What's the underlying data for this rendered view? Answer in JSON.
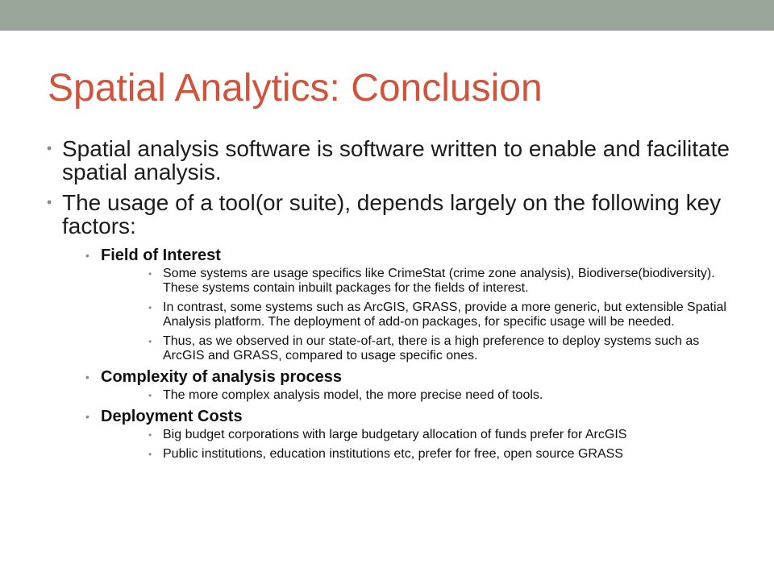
{
  "slide": {
    "title": "Spatial Analytics: Conclusion",
    "bullet_glyph": "•",
    "bullets": [
      {
        "text": "Spatial analysis software is software written to enable and facilitate spatial analysis."
      },
      {
        "text": "The usage of a tool(or suite), depends largely on the following key factors:",
        "subitems": [
          {
            "heading": "Field of Interest",
            "points": [
              "Some systems are usage specifics like CrimeStat (crime zone analysis), Biodiverse(biodiversity).  These systems contain inbuilt  packages for the fields of interest.",
              "In contrast, some systems such as ArcGIS, GRASS, provide a more generic, but extensible  Spatial Analysis platform. The deployment of add-on packages, for specific usage will be needed.",
              "Thus, as we observed in our state-of-art, there is a high  preference to deploy systems such as ArcGIS and GRASS, compared to usage specific ones."
            ]
          },
          {
            "heading": "Complexity of analysis process",
            "points": [
              "The more complex analysis model, the more precise need of tools."
            ]
          },
          {
            "heading": "Deployment Costs",
            "points": [
              "Big budget corporations with large budgetary allocation of funds prefer for ArcGIS",
              "Public institutions,  education institutions  etc, prefer for free, open source GRASS"
            ]
          }
        ]
      }
    ]
  },
  "colors": {
    "band": "#9aa69a",
    "title": "#d0533c",
    "text": "#1c1c1c",
    "bullet": "#8a8a8a"
  }
}
